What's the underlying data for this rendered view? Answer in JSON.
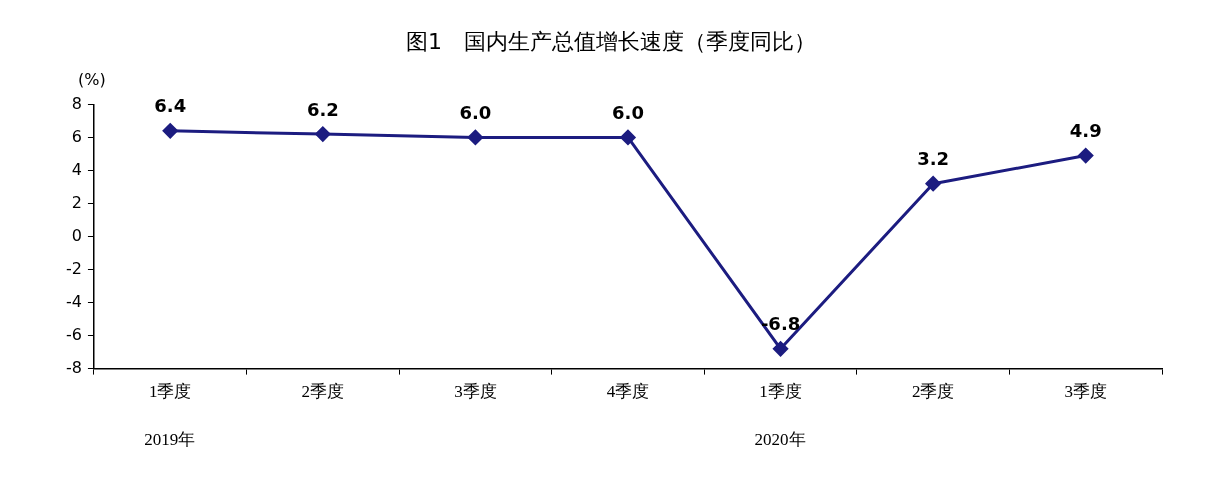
{
  "chart_data": {
    "type": "line",
    "title": "图1　国内生产总值增长速度（季度同比）",
    "ylabel": "(%)",
    "categories": [
      "1季度",
      "2季度",
      "3季度",
      "4季度",
      "1季度",
      "2季度",
      "3季度"
    ],
    "series": [
      {
        "color": "#1c1c80",
        "values": [
          6.4,
          6.2,
          6.0,
          6.0,
          -6.8,
          3.2,
          4.9
        ],
        "value_labels": [
          "6.4",
          "6.2",
          "6.0",
          "6.0",
          "-6.8",
          "3.2",
          "4.9"
        ]
      }
    ],
    "ylim": [
      -8,
      8
    ],
    "yticks": [
      -8,
      -6,
      -4,
      -2,
      0,
      2,
      4,
      6,
      8
    ],
    "grid": false,
    "legend": false,
    "marker": "diamond",
    "line_style": "solid",
    "annotations": [
      "2019年",
      "2020年"
    ]
  }
}
